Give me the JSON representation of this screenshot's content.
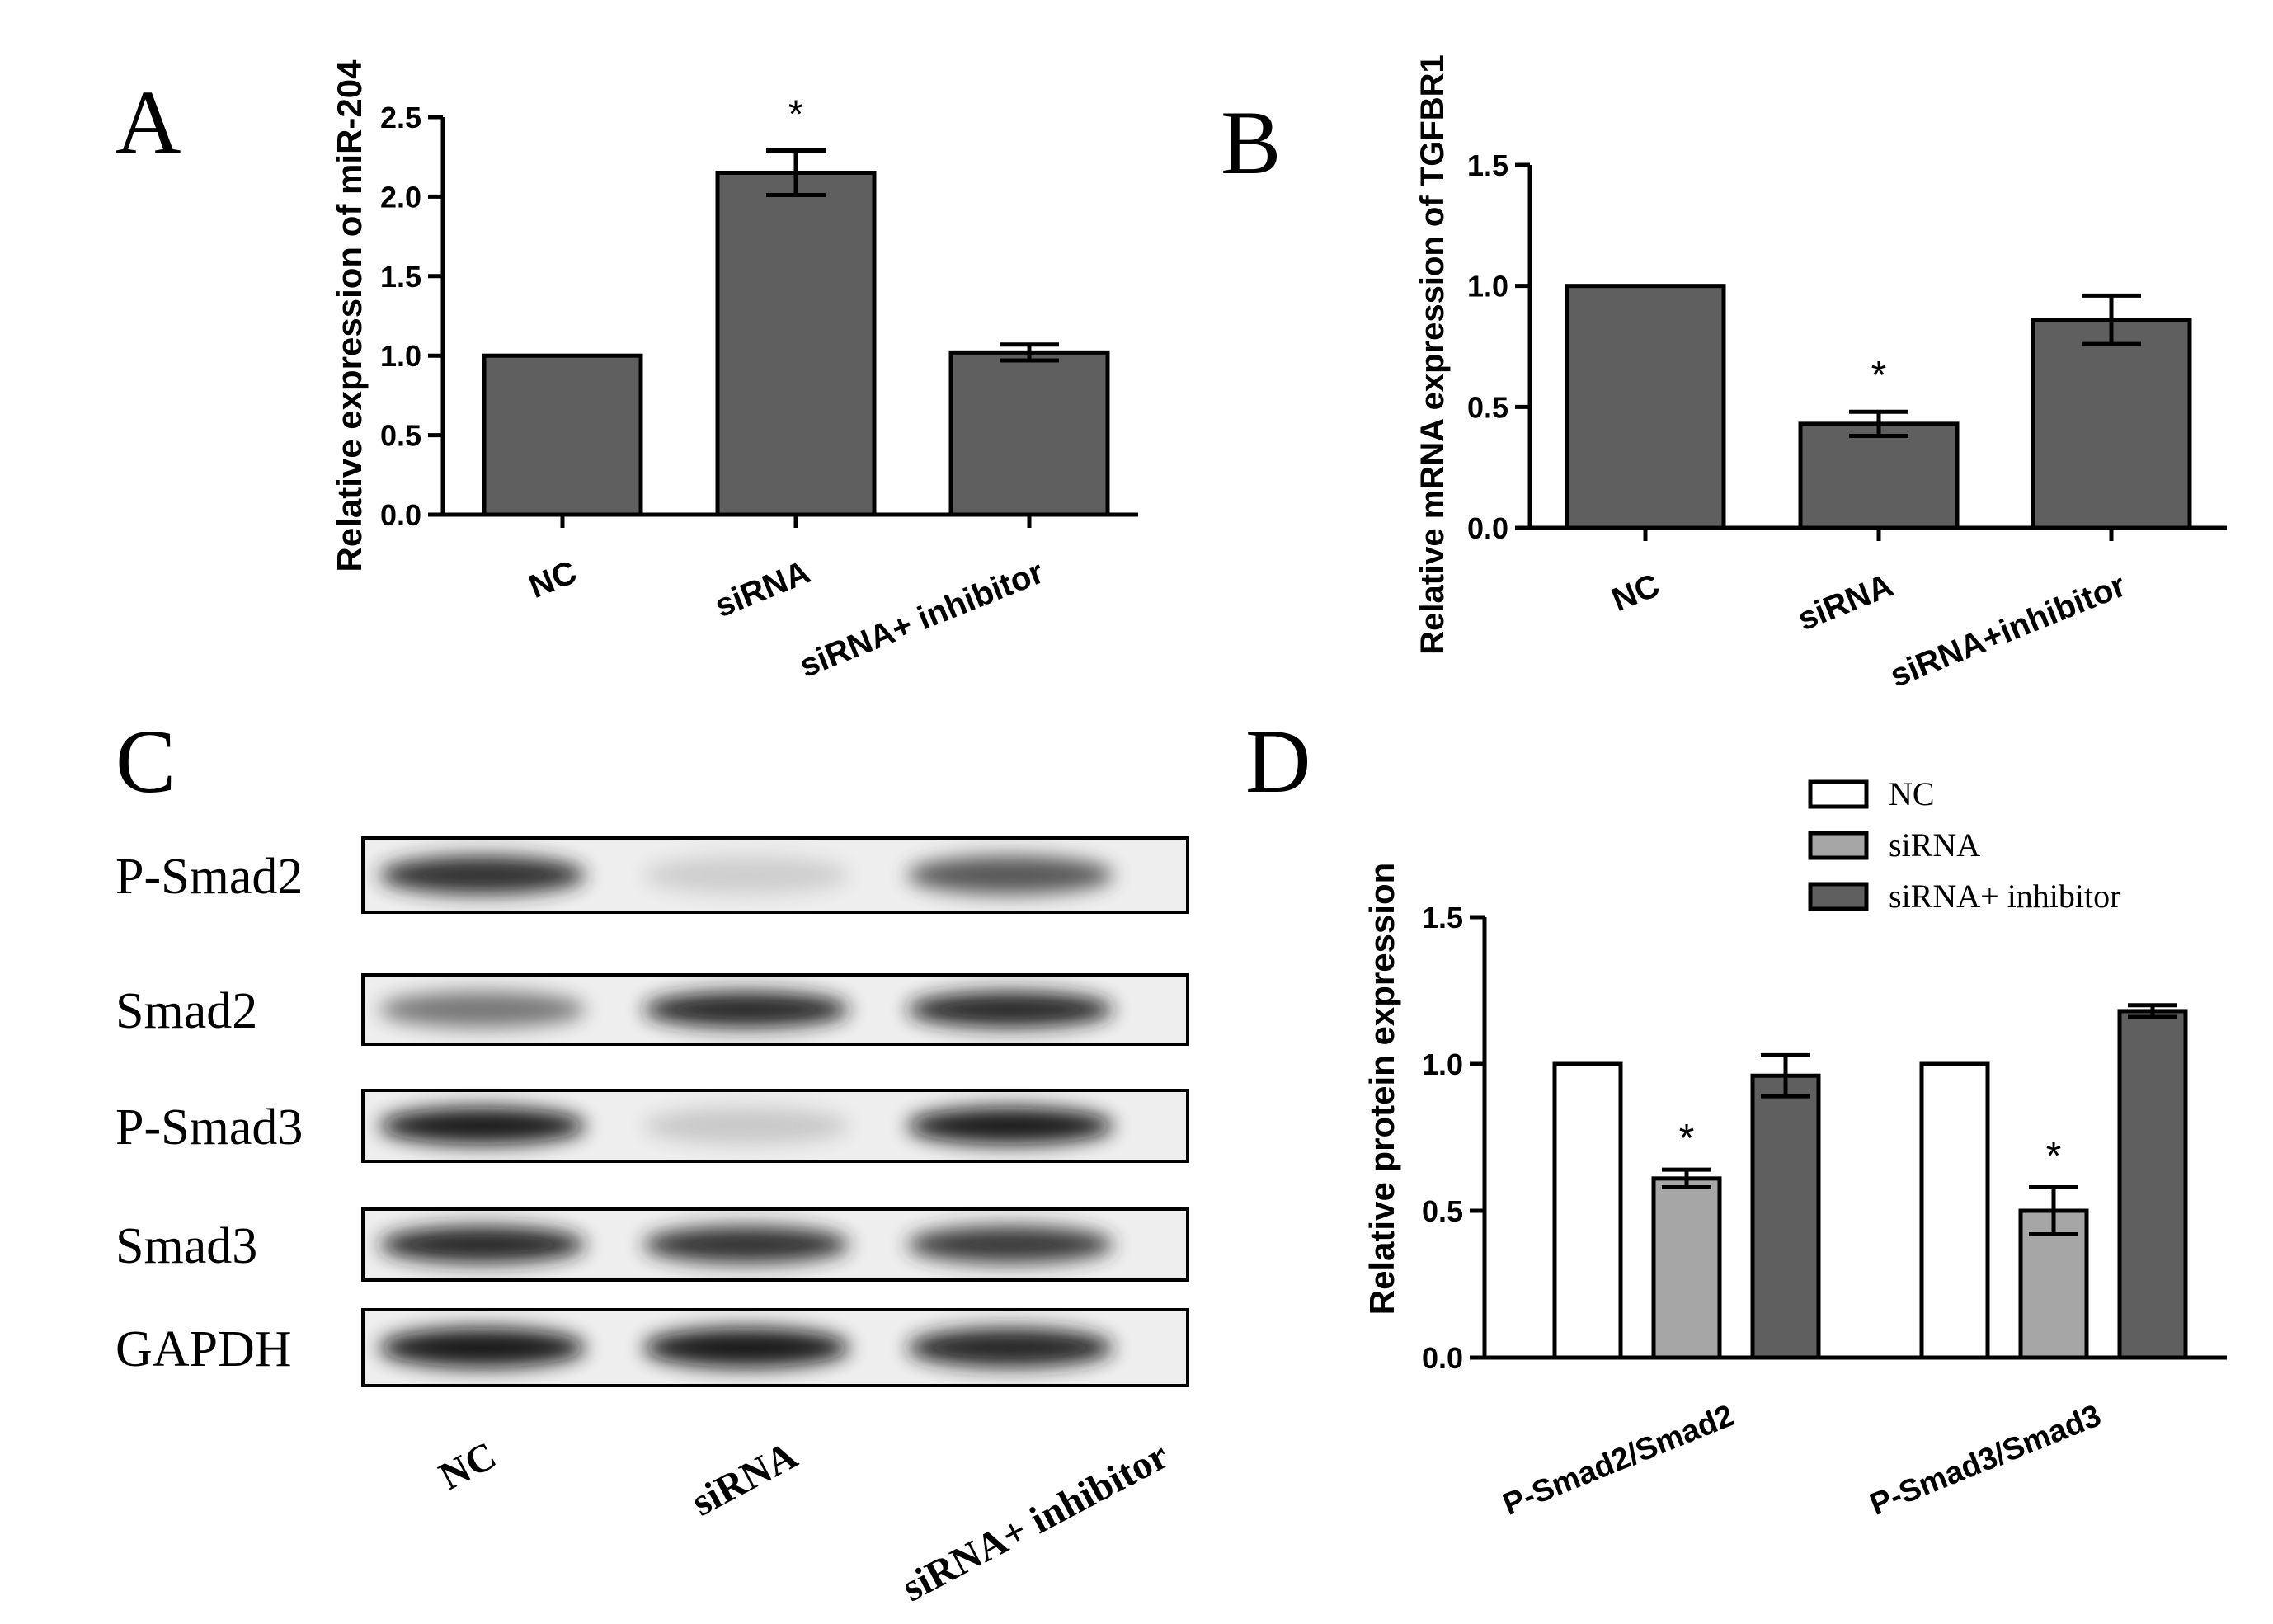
{
  "figure": {
    "panel_labels": [
      "A",
      "B",
      "C",
      "D"
    ]
  },
  "blot": {
    "rows": [
      {
        "label": "P-Smad2",
        "bands": [
          0.9,
          0.12,
          0.7
        ]
      },
      {
        "label": "Smad2",
        "bands": [
          0.55,
          0.95,
          0.95
        ]
      },
      {
        "label": "P-Smad3",
        "bands": [
          1.0,
          0.15,
          1.0
        ]
      },
      {
        "label": "Smad3",
        "bands": [
          0.95,
          0.9,
          0.85
        ]
      },
      {
        "label": "GAPDH",
        "bands": [
          1.0,
          1.0,
          0.95
        ]
      }
    ],
    "lanes": [
      "NC",
      "siRNA",
      "siRNA+ inhibitor"
    ]
  },
  "chart_data": [
    {
      "panel": "A",
      "type": "bar",
      "categories": [
        "NC",
        "siRNA",
        "siRNA+ inhibitor"
      ],
      "values": [
        1.0,
        2.15,
        1.02
      ],
      "errors": [
        0.0,
        0.14,
        0.05
      ],
      "significance": [
        "",
        "*",
        ""
      ],
      "ylabel": "Relative expression of miR-204",
      "ylim": [
        0,
        2.5
      ],
      "yticks": [
        "0.0",
        "0.5",
        "1.0",
        "1.5",
        "2.0",
        "2.5"
      ],
      "bar_color": "#5f5f5f"
    },
    {
      "panel": "B",
      "type": "bar",
      "categories": [
        "NC",
        "siRNA",
        "siRNA+inhibitor"
      ],
      "values": [
        1.0,
        0.43,
        0.86
      ],
      "errors": [
        0.0,
        0.05,
        0.1
      ],
      "significance": [
        "",
        "*",
        ""
      ],
      "ylabel": "Relative mRNA expression of TGFBR1",
      "ylim": [
        0,
        1.5
      ],
      "yticks": [
        "0.0",
        "0.5",
        "1.0",
        "1.5"
      ],
      "bar_color": "#5f5f5f"
    },
    {
      "panel": "D",
      "type": "bar",
      "categories": [
        "P-Smad2/Smad2",
        "P-Smad3/Smad3"
      ],
      "series": [
        {
          "name": "NC",
          "values": [
            1.0,
            1.0
          ],
          "errors": [
            0.0,
            0.0
          ],
          "significance": [
            "",
            ""
          ],
          "color": "#ffffff"
        },
        {
          "name": "siRNA",
          "values": [
            0.61,
            0.5
          ],
          "errors": [
            0.03,
            0.08
          ],
          "significance": [
            "*",
            "*"
          ],
          "color": "#a6a6a6"
        },
        {
          "name": "siRNA+ inhibitor",
          "values": [
            0.96,
            1.18
          ],
          "errors": [
            0.07,
            0.02
          ],
          "significance": [
            "",
            ""
          ],
          "color": "#5f5f5f"
        }
      ],
      "ylabel": "Relative protein expression",
      "ylim": [
        0,
        1.5
      ],
      "yticks": [
        "0.0",
        "0.5",
        "1.0",
        "1.5"
      ],
      "legend": "top-right"
    }
  ]
}
